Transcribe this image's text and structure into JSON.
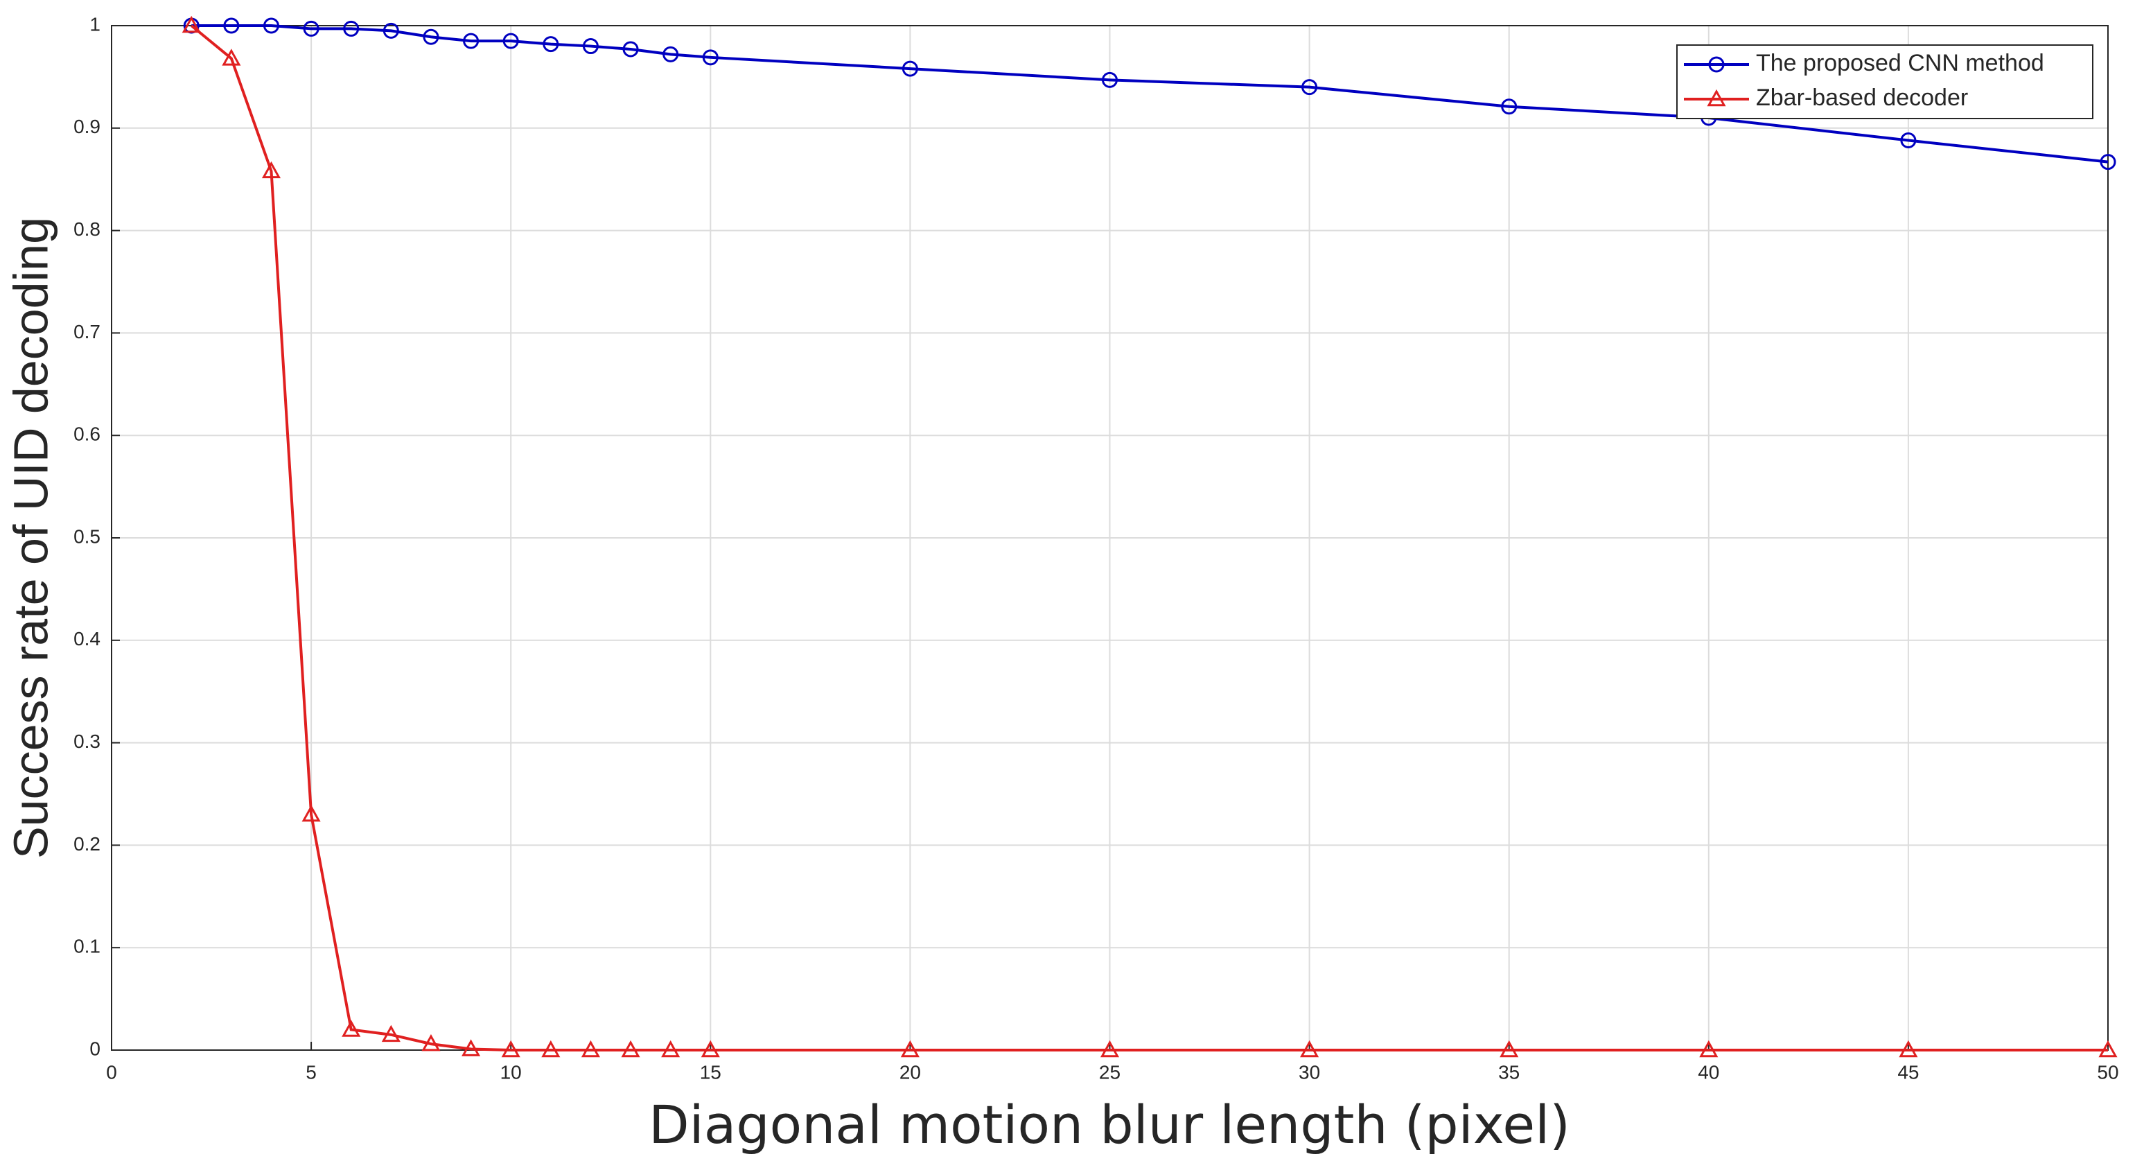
{
  "chart_data": {
    "type": "line",
    "x_label": "Diagonal motion blur length (pixel)",
    "y_label": "Success rate of UID decoding",
    "x": [
      2,
      3,
      4,
      5,
      6,
      7,
      8,
      9,
      10,
      11,
      12,
      13,
      14,
      15,
      20,
      25,
      30,
      35,
      40,
      45,
      50
    ],
    "series": [
      {
        "name": "The proposed CNN method",
        "color": "#0000c0",
        "marker": "circle",
        "values": [
          1.0,
          1.0,
          1.0,
          0.997,
          0.997,
          0.995,
          0.989,
          0.985,
          0.985,
          0.982,
          0.98,
          0.977,
          0.972,
          0.969,
          0.958,
          0.947,
          0.94,
          0.921,
          0.91,
          0.888,
          0.867
        ]
      },
      {
        "name": "Zbar-based decoder",
        "color": "#e02020",
        "marker": "triangle",
        "values": [
          1.0,
          0.968,
          0.858,
          0.23,
          0.02,
          0.015,
          0.006,
          0.001,
          0,
          0,
          0,
          0,
          0,
          0,
          0,
          0,
          0,
          0,
          0,
          0,
          0
        ]
      }
    ],
    "xlim": [
      0,
      50
    ],
    "xticks": [
      0,
      5,
      10,
      15,
      20,
      25,
      30,
      35,
      40,
      45,
      50
    ],
    "ylim": [
      0,
      1
    ],
    "yticks": [
      0,
      0.1,
      0.2,
      0.3,
      0.4,
      0.5,
      0.6,
      0.7,
      0.8,
      0.9,
      1
    ],
    "grid": true,
    "legend": "top-right"
  }
}
